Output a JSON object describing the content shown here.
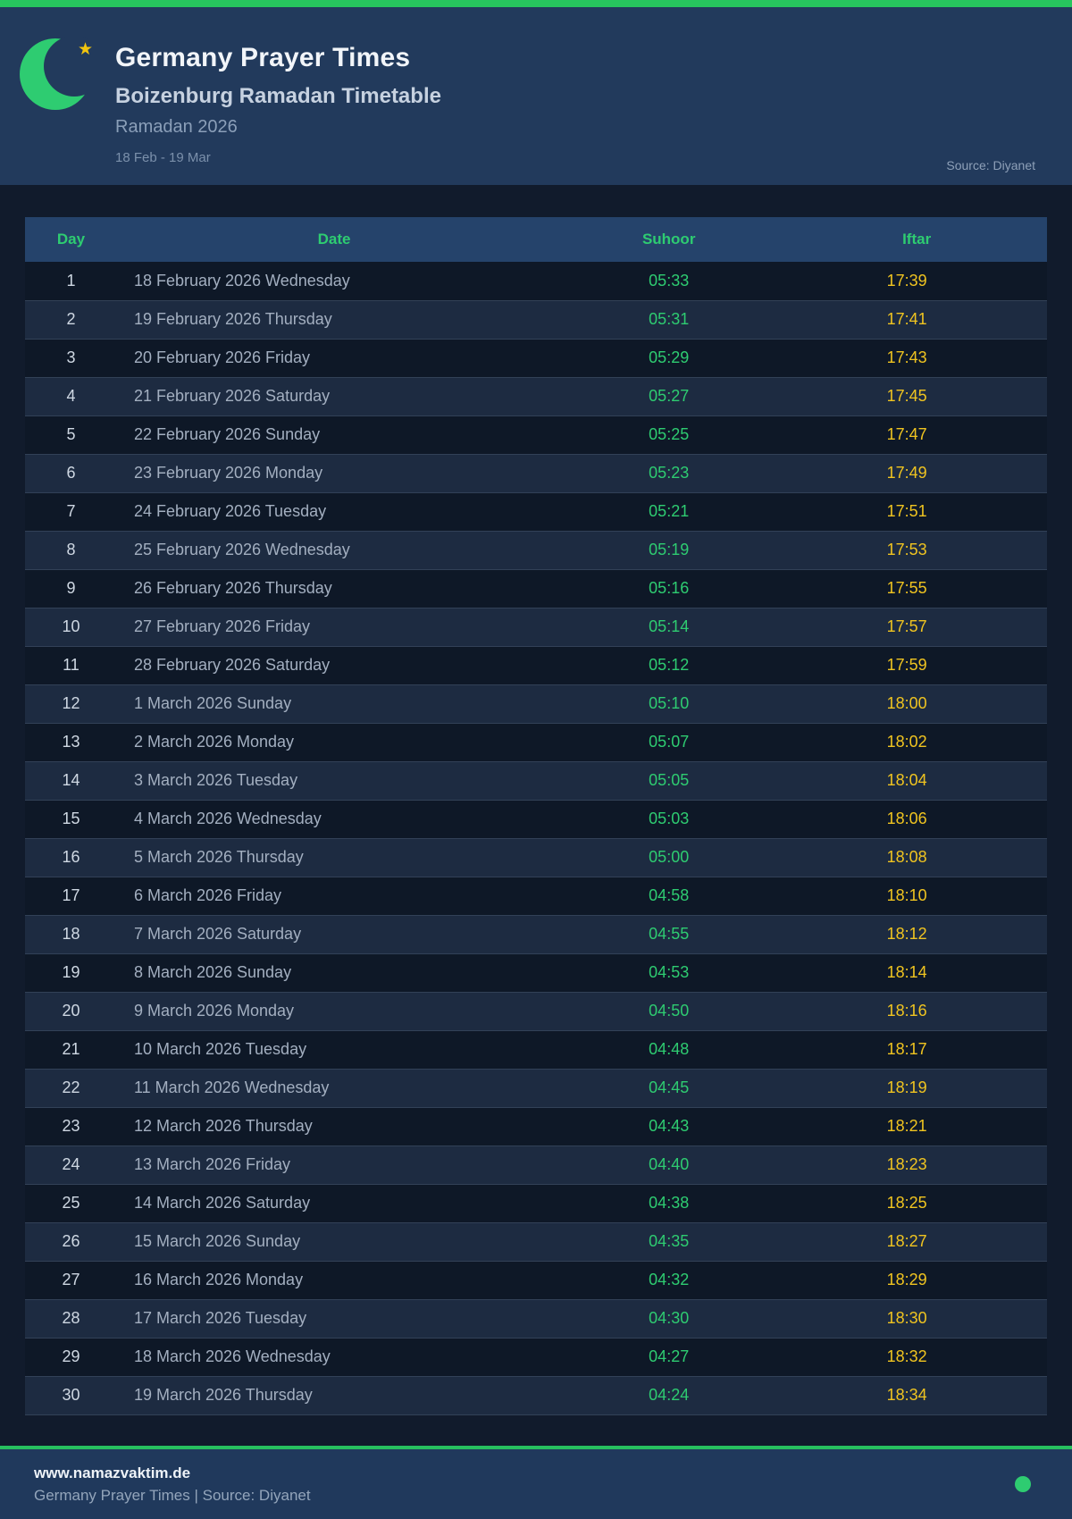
{
  "accent": {
    "green": "#2ecc71",
    "gold": "#f0c420",
    "header_blue": "#223a5c"
  },
  "header": {
    "title": "Germany Prayer Times",
    "subtitle": "Boizenburg Ramadan Timetable",
    "season": "Ramadan 2026",
    "date_range": "18 Feb - 19 Mar",
    "source": "Source: Diyanet",
    "star_glyph": "★"
  },
  "table": {
    "columns": [
      "Day",
      "Date",
      "Suhoor",
      "Iftar"
    ],
    "rows": [
      {
        "day": "1",
        "date": "18 February 2026 Wednesday",
        "suhoor": "05:33",
        "iftar": "17:39"
      },
      {
        "day": "2",
        "date": "19 February 2026 Thursday",
        "suhoor": "05:31",
        "iftar": "17:41"
      },
      {
        "day": "3",
        "date": "20 February 2026 Friday",
        "suhoor": "05:29",
        "iftar": "17:43"
      },
      {
        "day": "4",
        "date": "21 February 2026 Saturday",
        "suhoor": "05:27",
        "iftar": "17:45"
      },
      {
        "day": "5",
        "date": "22 February 2026 Sunday",
        "suhoor": "05:25",
        "iftar": "17:47"
      },
      {
        "day": "6",
        "date": "23 February 2026 Monday",
        "suhoor": "05:23",
        "iftar": "17:49"
      },
      {
        "day": "7",
        "date": "24 February 2026 Tuesday",
        "suhoor": "05:21",
        "iftar": "17:51"
      },
      {
        "day": "8",
        "date": "25 February 2026 Wednesday",
        "suhoor": "05:19",
        "iftar": "17:53"
      },
      {
        "day": "9",
        "date": "26 February 2026 Thursday",
        "suhoor": "05:16",
        "iftar": "17:55"
      },
      {
        "day": "10",
        "date": "27 February 2026 Friday",
        "suhoor": "05:14",
        "iftar": "17:57"
      },
      {
        "day": "11",
        "date": "28 February 2026 Saturday",
        "suhoor": "05:12",
        "iftar": "17:59"
      },
      {
        "day": "12",
        "date": "1 March 2026 Sunday",
        "suhoor": "05:10",
        "iftar": "18:00"
      },
      {
        "day": "13",
        "date": "2 March 2026 Monday",
        "suhoor": "05:07",
        "iftar": "18:02"
      },
      {
        "day": "14",
        "date": "3 March 2026 Tuesday",
        "suhoor": "05:05",
        "iftar": "18:04"
      },
      {
        "day": "15",
        "date": "4 March 2026 Wednesday",
        "suhoor": "05:03",
        "iftar": "18:06"
      },
      {
        "day": "16",
        "date": "5 March 2026 Thursday",
        "suhoor": "05:00",
        "iftar": "18:08"
      },
      {
        "day": "17",
        "date": "6 March 2026 Friday",
        "suhoor": "04:58",
        "iftar": "18:10"
      },
      {
        "day": "18",
        "date": "7 March 2026 Saturday",
        "suhoor": "04:55",
        "iftar": "18:12"
      },
      {
        "day": "19",
        "date": "8 March 2026 Sunday",
        "suhoor": "04:53",
        "iftar": "18:14"
      },
      {
        "day": "20",
        "date": "9 March 2026 Monday",
        "suhoor": "04:50",
        "iftar": "18:16"
      },
      {
        "day": "21",
        "date": "10 March 2026 Tuesday",
        "suhoor": "04:48",
        "iftar": "18:17"
      },
      {
        "day": "22",
        "date": "11 March 2026 Wednesday",
        "suhoor": "04:45",
        "iftar": "18:19"
      },
      {
        "day": "23",
        "date": "12 March 2026 Thursday",
        "suhoor": "04:43",
        "iftar": "18:21"
      },
      {
        "day": "24",
        "date": "13 March 2026 Friday",
        "suhoor": "04:40",
        "iftar": "18:23"
      },
      {
        "day": "25",
        "date": "14 March 2026 Saturday",
        "suhoor": "04:38",
        "iftar": "18:25"
      },
      {
        "day": "26",
        "date": "15 March 2026 Sunday",
        "suhoor": "04:35",
        "iftar": "18:27"
      },
      {
        "day": "27",
        "date": "16 March 2026 Monday",
        "suhoor": "04:32",
        "iftar": "18:29"
      },
      {
        "day": "28",
        "date": "17 March 2026 Tuesday",
        "suhoor": "04:30",
        "iftar": "18:30"
      },
      {
        "day": "29",
        "date": "18 March 2026 Wednesday",
        "suhoor": "04:27",
        "iftar": "18:32"
      },
      {
        "day": "30",
        "date": "19 March 2026 Thursday",
        "suhoor": "04:24",
        "iftar": "18:34"
      }
    ]
  },
  "footer": {
    "website": "www.namazvaktim.de",
    "tagline": "Germany Prayer Times | Source: Diyanet"
  }
}
